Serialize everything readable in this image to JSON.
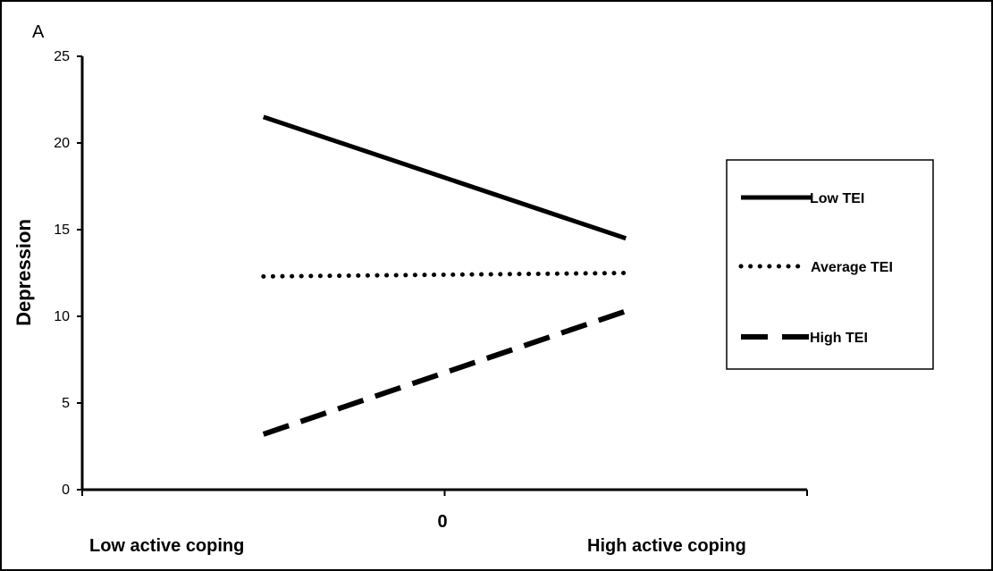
{
  "chart_data": {
    "type": "line",
    "panel_label": "A",
    "ylabel": "Depression",
    "ylim": [
      0,
      25
    ],
    "yticks": [
      0,
      5,
      10,
      15,
      20,
      25
    ],
    "xlim": [
      -1,
      1
    ],
    "x_center_label": "0",
    "x_low_label": "Low active coping",
    "x_high_label": "High active coping",
    "x": [
      -0.5,
      0.5
    ],
    "series": [
      {
        "name": "Low TEI",
        "values": [
          21.5,
          14.5
        ],
        "style": "solid"
      },
      {
        "name": "Average TEI",
        "values": [
          12.3,
          12.5
        ],
        "style": "dotted"
      },
      {
        "name": "High TEI",
        "values": [
          3.2,
          10.3
        ],
        "style": "dashed"
      }
    ],
    "legend_position": "right",
    "grid": false,
    "line_color": "#000000"
  }
}
